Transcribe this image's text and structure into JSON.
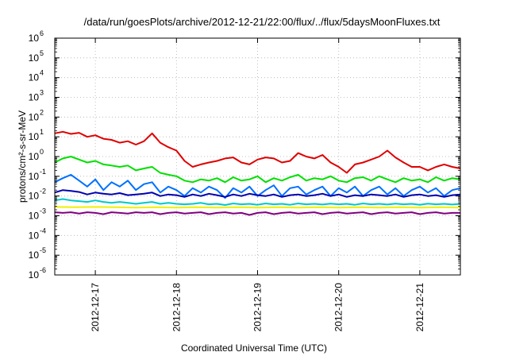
{
  "chart_data": {
    "type": "line",
    "title": "/data/run/goesPlots/archive/2012-12-21/22:00/flux/../flux/5daysMoonFluxes.txt",
    "xlabel": "Coordinated Universal Time (UTC)",
    "ylabel": "protons/cm²-s-sr-MeV",
    "yscale": "log",
    "ylim": [
      1e-06,
      1000000.0
    ],
    "xlim": [
      0,
      5
    ],
    "grid": true,
    "x_ticks": [
      {
        "x": 0.5,
        "label": "2012-12-17"
      },
      {
        "x": 1.5,
        "label": "2012-12-18"
      },
      {
        "x": 2.5,
        "label": "2012-12-19"
      },
      {
        "x": 3.5,
        "label": "2012-12-20"
      },
      {
        "x": 4.5,
        "label": "2012-12-21"
      }
    ],
    "y_ticks": [
      {
        "y": 1e-06,
        "label": "10",
        "exp": "-6"
      },
      {
        "y": 1e-05,
        "label": "10",
        "exp": "-5"
      },
      {
        "y": 0.0001,
        "label": "10",
        "exp": "-4"
      },
      {
        "y": 0.001,
        "label": "10",
        "exp": "-3"
      },
      {
        "y": 0.01,
        "label": "10",
        "exp": "-2"
      },
      {
        "y": 0.1,
        "label": "10",
        "exp": "-1"
      },
      {
        "y": 1.0,
        "label": "10",
        "exp": "0"
      },
      {
        "y": 10.0,
        "label": "10",
        "exp": "1"
      },
      {
        "y": 100.0,
        "label": "10",
        "exp": "2"
      },
      {
        "y": 1000.0,
        "label": "10",
        "exp": "3"
      },
      {
        "y": 10000.0,
        "label": "10",
        "exp": "4"
      },
      {
        "y": 100000.0,
        "label": "10",
        "exp": "5"
      },
      {
        "y": 1000000.0,
        "label": "10",
        "exp": "6"
      }
    ],
    "series": [
      {
        "color": "#e00000",
        "x": [
          0,
          0.1,
          0.2,
          0.3,
          0.4,
          0.5,
          0.6,
          0.7,
          0.8,
          0.9,
          1.0,
          1.1,
          1.2,
          1.3,
          1.4,
          1.5,
          1.6,
          1.7,
          1.8,
          1.9,
          2.0,
          2.1,
          2.2,
          2.3,
          2.4,
          2.5,
          2.6,
          2.7,
          2.8,
          2.9,
          3.0,
          3.1,
          3.2,
          3.3,
          3.4,
          3.5,
          3.6,
          3.7,
          3.8,
          3.9,
          4.0,
          4.1,
          4.2,
          4.3,
          4.4,
          4.5,
          4.6,
          4.7,
          4.8,
          4.9,
          5.0
        ],
        "y": [
          15,
          18,
          14,
          16,
          10,
          12,
          8,
          7,
          5,
          6,
          4,
          6,
          15,
          5,
          3,
          2,
          0.6,
          0.3,
          0.4,
          0.5,
          0.6,
          0.8,
          0.9,
          0.5,
          0.4,
          0.7,
          0.9,
          0.8,
          0.5,
          0.6,
          1.5,
          1.0,
          0.8,
          1.2,
          0.5,
          0.3,
          0.15,
          0.4,
          0.5,
          0.7,
          1.0,
          2.0,
          0.9,
          0.5,
          0.3,
          0.3,
          0.2,
          0.3,
          0.4,
          0.3,
          0.25
        ]
      },
      {
        "color": "#00e000",
        "x": [
          0,
          0.1,
          0.2,
          0.3,
          0.4,
          0.5,
          0.6,
          0.7,
          0.8,
          0.9,
          1.0,
          1.1,
          1.2,
          1.3,
          1.4,
          1.5,
          1.6,
          1.7,
          1.8,
          1.9,
          2.0,
          2.1,
          2.2,
          2.3,
          2.4,
          2.5,
          2.6,
          2.7,
          2.8,
          2.9,
          3.0,
          3.1,
          3.2,
          3.3,
          3.4,
          3.5,
          3.6,
          3.7,
          3.8,
          3.9,
          4.0,
          4.1,
          4.2,
          4.3,
          4.4,
          4.5,
          4.6,
          4.7,
          4.8,
          4.9,
          5.0
        ],
        "y": [
          0.5,
          0.8,
          1.0,
          0.7,
          0.5,
          0.6,
          0.4,
          0.35,
          0.3,
          0.35,
          0.2,
          0.25,
          0.3,
          0.15,
          0.12,
          0.1,
          0.06,
          0.05,
          0.07,
          0.06,
          0.08,
          0.05,
          0.09,
          0.06,
          0.07,
          0.1,
          0.05,
          0.08,
          0.06,
          0.09,
          0.12,
          0.06,
          0.08,
          0.07,
          0.1,
          0.06,
          0.05,
          0.08,
          0.09,
          0.06,
          0.1,
          0.07,
          0.05,
          0.08,
          0.06,
          0.07,
          0.05,
          0.09,
          0.06,
          0.08,
          0.07
        ]
      },
      {
        "color": "#0070ff",
        "x": [
          0,
          0.1,
          0.2,
          0.3,
          0.4,
          0.5,
          0.6,
          0.7,
          0.8,
          0.9,
          1.0,
          1.1,
          1.2,
          1.3,
          1.4,
          1.5,
          1.6,
          1.7,
          1.8,
          1.9,
          2.0,
          2.1,
          2.2,
          2.3,
          2.4,
          2.5,
          2.6,
          2.7,
          2.8,
          2.9,
          3.0,
          3.1,
          3.2,
          3.3,
          3.4,
          3.5,
          3.6,
          3.7,
          3.8,
          3.9,
          4.0,
          4.1,
          4.2,
          4.3,
          4.4,
          4.5,
          4.6,
          4.7,
          4.8,
          4.9,
          5.0
        ],
        "y": [
          0.05,
          0.08,
          0.12,
          0.06,
          0.03,
          0.07,
          0.02,
          0.05,
          0.03,
          0.06,
          0.02,
          0.04,
          0.05,
          0.015,
          0.03,
          0.02,
          0.01,
          0.025,
          0.015,
          0.03,
          0.02,
          0.008,
          0.025,
          0.015,
          0.03,
          0.01,
          0.02,
          0.035,
          0.01,
          0.025,
          0.03,
          0.012,
          0.02,
          0.03,
          0.01,
          0.025,
          0.015,
          0.03,
          0.01,
          0.02,
          0.03,
          0.012,
          0.025,
          0.01,
          0.02,
          0.03,
          0.015,
          0.025,
          0.01,
          0.02,
          0.025
        ]
      },
      {
        "color": "#0000b0",
        "x": [
          0,
          0.1,
          0.2,
          0.3,
          0.4,
          0.5,
          0.6,
          0.7,
          0.8,
          0.9,
          1.0,
          1.1,
          1.2,
          1.3,
          1.4,
          1.5,
          1.6,
          1.7,
          1.8,
          1.9,
          2.0,
          2.1,
          2.2,
          2.3,
          2.4,
          2.5,
          2.6,
          2.7,
          2.8,
          2.9,
          3.0,
          3.1,
          3.2,
          3.3,
          3.4,
          3.5,
          3.6,
          3.7,
          3.8,
          3.9,
          4.0,
          4.1,
          4.2,
          4.3,
          4.4,
          4.5,
          4.6,
          4.7,
          4.8,
          4.9,
          5.0
        ],
        "y": [
          0.015,
          0.02,
          0.018,
          0.016,
          0.012,
          0.015,
          0.013,
          0.012,
          0.014,
          0.011,
          0.012,
          0.013,
          0.015,
          0.01,
          0.012,
          0.011,
          0.009,
          0.012,
          0.01,
          0.013,
          0.011,
          0.009,
          0.012,
          0.01,
          0.013,
          0.011,
          0.01,
          0.012,
          0.009,
          0.011,
          0.012,
          0.01,
          0.011,
          0.013,
          0.01,
          0.012,
          0.009,
          0.011,
          0.01,
          0.012,
          0.011,
          0.01,
          0.012,
          0.009,
          0.011,
          0.012,
          0.01,
          0.011,
          0.009,
          0.011,
          0.012
        ]
      },
      {
        "color": "#00c8c8",
        "x": [
          0,
          0.1,
          0.2,
          0.3,
          0.4,
          0.5,
          0.6,
          0.7,
          0.8,
          0.9,
          1.0,
          1.1,
          1.2,
          1.3,
          1.4,
          1.5,
          1.6,
          1.7,
          1.8,
          1.9,
          2.0,
          2.1,
          2.2,
          2.3,
          2.4,
          2.5,
          2.6,
          2.7,
          2.8,
          2.9,
          3.0,
          3.1,
          3.2,
          3.3,
          3.4,
          3.5,
          3.6,
          3.7,
          3.8,
          3.9,
          4.0,
          4.1,
          4.2,
          4.3,
          4.4,
          4.5,
          4.6,
          4.7,
          4.8,
          4.9,
          5.0
        ],
        "y": [
          0.006,
          0.007,
          0.006,
          0.0055,
          0.005,
          0.006,
          0.005,
          0.0045,
          0.005,
          0.0045,
          0.004,
          0.0045,
          0.005,
          0.004,
          0.0045,
          0.004,
          0.0038,
          0.004,
          0.0045,
          0.0038,
          0.004,
          0.0035,
          0.0042,
          0.0038,
          0.004,
          0.0036,
          0.0042,
          0.0038,
          0.004,
          0.0036,
          0.0042,
          0.0038,
          0.004,
          0.0037,
          0.0041,
          0.0038,
          0.004,
          0.0036,
          0.0042,
          0.0038,
          0.004,
          0.0037,
          0.0041,
          0.0038,
          0.004,
          0.0036,
          0.0041,
          0.0038,
          0.004,
          0.0037,
          0.004
        ]
      },
      {
        "color": "#f0f000",
        "x": [
          0,
          0.25,
          0.5,
          0.75,
          1.0,
          1.25,
          1.5,
          1.75,
          2.0,
          2.25,
          2.5,
          2.75,
          3.0,
          3.25,
          3.5,
          3.75,
          4.0,
          4.25,
          4.5,
          4.75,
          5.0
        ],
        "y": [
          0.0028,
          0.0027,
          0.0028,
          0.0027,
          0.0026,
          0.0027,
          0.0026,
          0.0027,
          0.0026,
          0.0027,
          0.0026,
          0.0027,
          0.0026,
          0.0027,
          0.0026,
          0.0027,
          0.0026,
          0.0027,
          0.0026,
          0.0027,
          0.0026
        ]
      },
      {
        "color": "#800080",
        "x": [
          0,
          0.1,
          0.2,
          0.3,
          0.4,
          0.5,
          0.6,
          0.7,
          0.8,
          0.9,
          1.0,
          1.1,
          1.2,
          1.3,
          1.4,
          1.5,
          1.6,
          1.7,
          1.8,
          1.9,
          2.0,
          2.1,
          2.2,
          2.3,
          2.4,
          2.5,
          2.6,
          2.7,
          2.8,
          2.9,
          3.0,
          3.1,
          3.2,
          3.3,
          3.4,
          3.5,
          3.6,
          3.7,
          3.8,
          3.9,
          4.0,
          4.1,
          4.2,
          4.3,
          4.4,
          4.5,
          4.6,
          4.7,
          4.8,
          4.9,
          5.0
        ],
        "y": [
          0.0015,
          0.0014,
          0.0015,
          0.0013,
          0.0015,
          0.0014,
          0.0012,
          0.0015,
          0.0014,
          0.0013,
          0.0015,
          0.0014,
          0.0015,
          0.0012,
          0.0014,
          0.0015,
          0.0013,
          0.0014,
          0.0015,
          0.0012,
          0.0014,
          0.0015,
          0.0013,
          0.0014,
          0.0011,
          0.0014,
          0.0015,
          0.0012,
          0.0014,
          0.0015,
          0.0013,
          0.0014,
          0.0015,
          0.0012,
          0.0014,
          0.0015,
          0.0013,
          0.0014,
          0.0015,
          0.0012,
          0.0014,
          0.0015,
          0.0013,
          0.0014,
          0.0015,
          0.0012,
          0.0014,
          0.0015,
          0.0013,
          0.0014,
          0.0014
        ]
      }
    ]
  }
}
